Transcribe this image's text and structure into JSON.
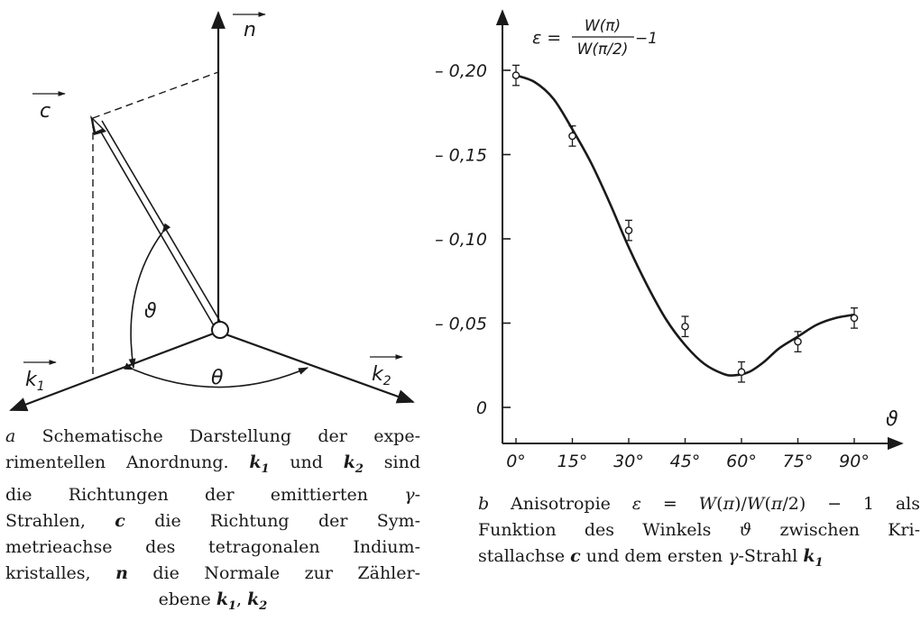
{
  "panel_a": {
    "labels": {
      "n": "n",
      "c": "c",
      "k1": "k",
      "k1_sub": "1",
      "k2": "k",
      "k2_sub": "2",
      "theta_small": "ϑ",
      "theta_big": "θ"
    },
    "caption": {
      "letter": "a",
      "lines": [
        [
          "Schematische Darstellung der expe-"
        ],
        [
          "rimentellen Anordnung. ",
          "k1",
          " und ",
          "k2",
          " sind"
        ],
        [
          "die Richtungen der emittierten γ-"
        ],
        [
          "Strahlen, ",
          "c",
          " die Richtung der Sym-"
        ],
        [
          "metrieachse des tetragonalen Indium-"
        ],
        [
          "kristalles, ",
          "n",
          " die Normale zur Zähler-"
        ],
        [
          "ebene ",
          "k1",
          ", ",
          "k2"
        ]
      ],
      "line_texts": [
        "a Schematische Darstellung der expe-",
        "rimentellen Anordnung. k1 und k2 sind",
        "die Richtungen der emittierten γ-",
        "Strahlen, c die Richtung der Sym-",
        "metrieachse des tetragonalen Indium-",
        "kristalles, n die Normale zur Zähler-",
        "ebene k1, k2"
      ]
    }
  },
  "panel_b": {
    "formula": {
      "lhs": "ε =",
      "numerator": "W(π)",
      "denominator": "W(π/2)",
      "tail": "−1"
    },
    "caption": {
      "line_texts": [
        "b Anisotropie ε = W(π)/W(π/2) − 1 als",
        "Funktion des Winkels ϑ zwischen Kri-",
        "stallachse c und dem ersten γ-Strahl k1"
      ]
    }
  },
  "chart_data": {
    "type": "scatter",
    "title": "",
    "xlabel": "ϑ",
    "ylabel": "ε = W(π)/W(π/2) − 1",
    "x_tick_labels": [
      "0°",
      "15°",
      "30°",
      "45°",
      "60°",
      "75°",
      "90°"
    ],
    "y_tick_labels": [
      "0",
      "0,05",
      "0,10",
      "0,15",
      "0,20"
    ],
    "y_tick_values": [
      0,
      0.05,
      0.1,
      0.15,
      0.2
    ],
    "xlim": [
      0,
      90
    ],
    "ylim": [
      0,
      0.22
    ],
    "grid": false,
    "series": [
      {
        "marker": "open-circle",
        "x": [
          0,
          15,
          30,
          45,
          60,
          75,
          90
        ],
        "y": [
          0.197,
          0.161,
          0.105,
          0.048,
          0.021,
          0.039,
          0.053
        ],
        "error": [
          0.006,
          0.006,
          0.006,
          0.006,
          0.006,
          0.006,
          0.006
        ]
      }
    ],
    "fit_curve": {
      "x": [
        0,
        5,
        10,
        15,
        20,
        25,
        30,
        35,
        40,
        45,
        50,
        55,
        58,
        62,
        66,
        70,
        75,
        80,
        85,
        90
      ],
      "y": [
        0.197,
        0.193,
        0.183,
        0.165,
        0.145,
        0.121,
        0.095,
        0.072,
        0.052,
        0.037,
        0.026,
        0.02,
        0.019,
        0.021,
        0.027,
        0.035,
        0.042,
        0.049,
        0.053,
        0.055
      ]
    }
  }
}
